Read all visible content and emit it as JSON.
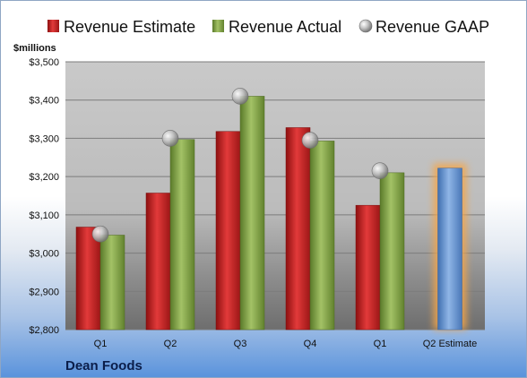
{
  "chart_data": {
    "type": "bar",
    "company": "Dean Foods",
    "unit_label": "$millions",
    "categories": [
      "Q1",
      "Q2",
      "Q3",
      "Q4",
      "Q1",
      "Q2 Estimate"
    ],
    "ylim": [
      2800,
      3500
    ],
    "yticks": [
      2800,
      2900,
      3000,
      3100,
      3200,
      3300,
      3400,
      3500
    ],
    "ytick_labels": [
      "$2,800",
      "$2,900",
      "$3,000",
      "$3,100",
      "$3,200",
      "$3,300",
      "$3,400",
      "$3,500"
    ],
    "grid": true,
    "legend_position": "top",
    "series": [
      {
        "name": "Revenue Estimate",
        "kind": "bar",
        "color": "#d42a2a",
        "values": [
          3068,
          3157,
          3318,
          3328,
          3125,
          null
        ]
      },
      {
        "name": "Revenue Actual",
        "kind": "bar",
        "color": "#86a84a",
        "values": [
          3047,
          3297,
          3410,
          3293,
          3210,
          null
        ]
      },
      {
        "name": "Revenue GAAP",
        "kind": "marker",
        "color": "#b8b8b8",
        "values": [
          3050,
          3300,
          3410,
          3295,
          3215,
          null
        ]
      }
    ],
    "estimate_bar": {
      "category_index": 5,
      "value": 3222,
      "color": "#5b8fd4",
      "glow_color": "#f4a64a"
    }
  }
}
